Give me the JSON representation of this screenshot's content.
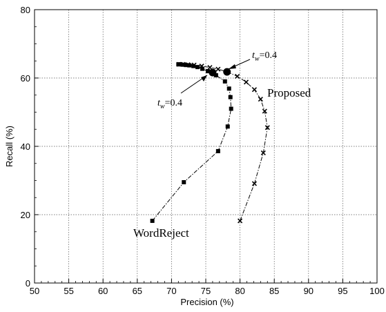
{
  "chart_data": {
    "type": "line",
    "xlabel": "Precision (%)",
    "ylabel": "Recall (%)",
    "xlim": [
      50,
      100
    ],
    "ylim": [
      0,
      80
    ],
    "xticks": [
      50,
      55,
      60,
      65,
      70,
      75,
      80,
      85,
      90,
      95,
      100
    ],
    "yticks": [
      0,
      20,
      40,
      60,
      80
    ],
    "grid": true,
    "legend": "none (series named by in-plot labels)",
    "series": [
      {
        "name": "WordReject",
        "marker": "square",
        "line": "dash-dot",
        "color": "#000000",
        "x": [
          67.2,
          71.8,
          76.8,
          78.2,
          78.7,
          78.6,
          78.4,
          77.8,
          76.5,
          75.3,
          74.5,
          73.8,
          73.2,
          72.6,
          72.1,
          71.7,
          71.3,
          71.0
        ],
        "y": [
          18.2,
          29.5,
          38.6,
          45.8,
          51.0,
          54.4,
          56.9,
          59.0,
          60.8,
          62.0,
          62.7,
          63.2,
          63.5,
          63.7,
          63.8,
          63.9,
          64.0,
          64.0
        ]
      },
      {
        "name": "Proposed",
        "marker": "x",
        "line": "dash-dot",
        "color": "#000000",
        "x": [
          80.0,
          82.1,
          83.4,
          84.0,
          83.6,
          83.0,
          82.1,
          80.9,
          79.6,
          78.1,
          76.8,
          75.6,
          74.4,
          73.3,
          72.4,
          71.7,
          71.1
        ],
        "y": [
          18.2,
          29.1,
          38.1,
          45.5,
          50.3,
          53.8,
          56.6,
          58.8,
          60.5,
          61.8,
          62.6,
          63.1,
          63.5,
          63.8,
          63.9,
          64.0,
          64.0
        ]
      }
    ],
    "highlight_points": [
      {
        "series": "WordReject",
        "x": 76.0,
        "y": 61.6,
        "label": "tw=0.4"
      },
      {
        "series": "Proposed",
        "x": 78.1,
        "y": 61.8,
        "label": "tw=0.4"
      }
    ],
    "annotations": {
      "tw_var": "t",
      "tw_sub": "w",
      "tw_val": "=0.4",
      "proposed_label": "Proposed",
      "wordreject_label": "WordReject"
    }
  }
}
